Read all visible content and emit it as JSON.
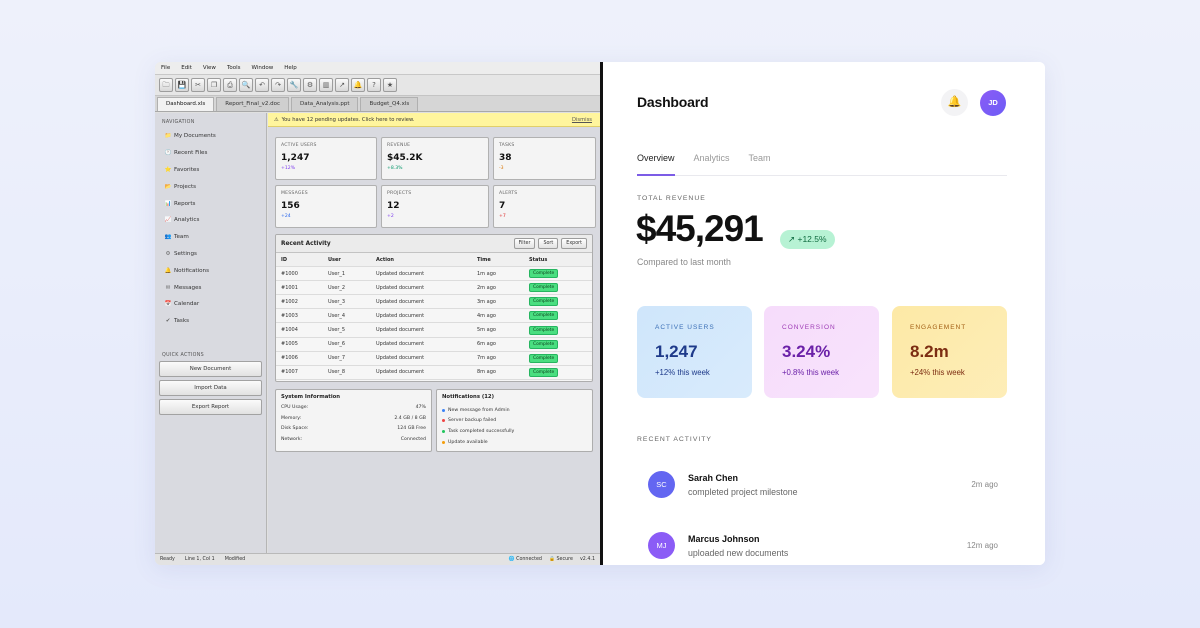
{
  "legacy": {
    "menu": [
      "File",
      "Edit",
      "View",
      "Tools",
      "Window",
      "Help"
    ],
    "toolbar_icons": [
      "open-icon",
      "save-icon",
      "cut-icon",
      "copy-icon",
      "print-icon",
      "find-icon",
      "undo-icon",
      "redo-icon",
      "tool-icon",
      "settings-icon",
      "chart-icon",
      "trend-icon",
      "bell-icon",
      "help-icon",
      "star-icon"
    ],
    "tabs": [
      "Dashboard.xls",
      "Report_Final_v2.doc",
      "Data_Analysis.ppt",
      "Budget_Q4.xls"
    ],
    "nav_title": "NAVIGATION",
    "nav": [
      {
        "label": "My Documents",
        "icon": "📁"
      },
      {
        "label": "Recent Files",
        "icon": "🕑"
      },
      {
        "label": "Favorites",
        "icon": "⭐"
      },
      {
        "label": "Projects",
        "icon": "📂"
      },
      {
        "label": "Reports",
        "icon": "📊"
      },
      {
        "label": "Analytics",
        "icon": "📈"
      },
      {
        "label": "Team",
        "icon": "👥"
      },
      {
        "label": "Settings",
        "icon": "⚙"
      },
      {
        "label": "Notifications",
        "icon": "🔔"
      },
      {
        "label": "Messages",
        "icon": "✉"
      },
      {
        "label": "Calendar",
        "icon": "📅"
      },
      {
        "label": "Tasks",
        "icon": "✔"
      }
    ],
    "quick_title": "QUICK ACTIONS",
    "quick": [
      "New Document",
      "Import Data",
      "Export Report"
    ],
    "banner": {
      "text": "You have 12 pending updates. Click here to review.",
      "dismiss": "Dismiss"
    },
    "metrics": [
      {
        "label": "ACTIVE USERS",
        "value": "1,247",
        "change": "+12%",
        "color": "#7c3aed"
      },
      {
        "label": "REVENUE",
        "value": "$45.2K",
        "change": "+8.3%",
        "color": "#059669"
      },
      {
        "label": "TASKS",
        "value": "38",
        "change": "-3",
        "color": "#d97706"
      },
      {
        "label": "MESSAGES",
        "value": "156",
        "change": "+24",
        "color": "#2563eb"
      },
      {
        "label": "PROJECTS",
        "value": "12",
        "change": "+2",
        "color": "#7c3aed"
      },
      {
        "label": "ALERTS",
        "value": "7",
        "change": "+7",
        "color": "#dc2626"
      }
    ],
    "activity": {
      "title": "Recent Activity",
      "buttons": [
        "Filter",
        "Sort",
        "Export"
      ],
      "columns": [
        "ID",
        "User",
        "Action",
        "Time",
        "Status"
      ],
      "rows": [
        [
          "#1000",
          "User_1",
          "Updated document",
          "1m ago",
          "Complete"
        ],
        [
          "#1001",
          "User_2",
          "Updated document",
          "2m ago",
          "Complete"
        ],
        [
          "#1002",
          "User_3",
          "Updated document",
          "3m ago",
          "Complete"
        ],
        [
          "#1003",
          "User_4",
          "Updated document",
          "4m ago",
          "Complete"
        ],
        [
          "#1004",
          "User_5",
          "Updated document",
          "5m ago",
          "Complete"
        ],
        [
          "#1005",
          "User_6",
          "Updated document",
          "6m ago",
          "Complete"
        ],
        [
          "#1006",
          "User_7",
          "Updated document",
          "7m ago",
          "Complete"
        ],
        [
          "#1007",
          "User_8",
          "Updated document",
          "8m ago",
          "Complete"
        ]
      ]
    },
    "system": {
      "title": "System Information",
      "rows": [
        [
          "CPU Usage:",
          "47%"
        ],
        [
          "Memory:",
          "2.4 GB / 8 GB"
        ],
        [
          "Disk Space:",
          "124 GB Free"
        ],
        [
          "Network:",
          "Connected"
        ]
      ]
    },
    "notifications": {
      "title": "Notifications (12)",
      "items": [
        {
          "text": "New message from Admin",
          "color": "#3b82f6"
        },
        {
          "text": "Server backup failed",
          "color": "#ef4444"
        },
        {
          "text": "Task completed successfully",
          "color": "#22c55e"
        },
        {
          "text": "Update available",
          "color": "#f59e0b"
        }
      ]
    },
    "status": {
      "ready": "Ready",
      "pos": "Line 1, Col 1",
      "modified": "Modified",
      "connected": "Connected",
      "secure": "Secure",
      "version": "v2.4.1"
    }
  },
  "modern": {
    "title": "Dashboard",
    "avatar": "JD",
    "tabs": [
      "Overview",
      "Analytics",
      "Team"
    ],
    "revenue_label": "TOTAL REVENUE",
    "revenue": "$45,291",
    "revenue_change": "↗ +12.5%",
    "revenue_sub": "Compared to last month",
    "kpis": [
      {
        "label": "ACTIVE USERS",
        "value": "1,247",
        "sub": "+12% this week",
        "bg": "#cfe6fb",
        "fg": "#1e3a8a",
        "lc": "#3b6fb6"
      },
      {
        "label": "CONVERSION",
        "value": "3.24%",
        "sub": "+0.8% this week",
        "bg": "#f6dcfb",
        "fg": "#6b21a8",
        "lc": "#9d3bb5"
      },
      {
        "label": "ENGAGEMENT",
        "value": "8.2m",
        "sub": "+24% this week",
        "bg": "#fde9a6",
        "fg": "#7c2d12",
        "lc": "#a15d12"
      }
    ],
    "recent_label": "RECENT ACTIVITY",
    "recent": [
      {
        "initials": "SC",
        "name": "Sarah Chen",
        "desc": "completed project milestone",
        "time": "2m ago",
        "color": "#6366f1"
      },
      {
        "initials": "MJ",
        "name": "Marcus Johnson",
        "desc": "uploaded new documents",
        "time": "12m ago",
        "color": "#8b5cf6"
      }
    ]
  }
}
